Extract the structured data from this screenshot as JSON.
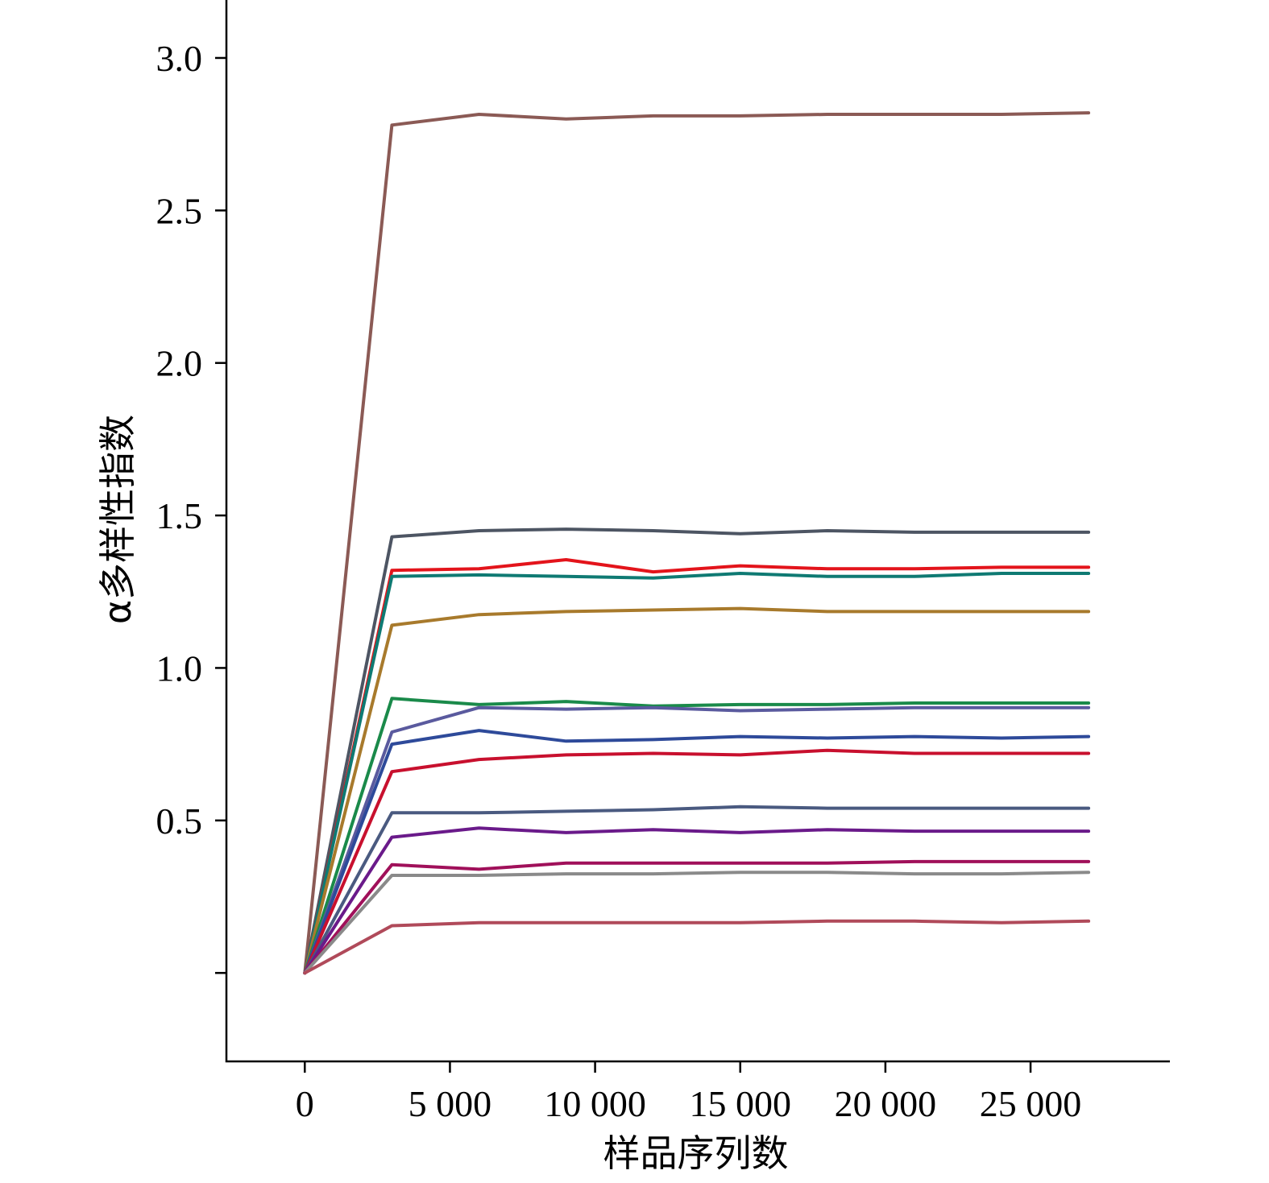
{
  "chart_data": {
    "type": "line",
    "xlabel": "样品序列数",
    "ylabel": "α多样性指数",
    "xlim": [
      -2700,
      29800
    ],
    "ylim": [
      -0.29,
      3.19
    ],
    "xticks": [
      0,
      5000,
      10000,
      15000,
      20000,
      25000
    ],
    "xtick_labels": [
      "0",
      "5 000",
      "10 000",
      "15 000",
      "20 000",
      "25 000"
    ],
    "yticks": [
      0.0,
      0.5,
      1.0,
      1.5,
      2.0,
      2.5,
      3.0
    ],
    "ytick_labels": [
      "",
      "0.5",
      "1.0",
      "1.5",
      "2.0",
      "2.5",
      "3.0"
    ],
    "grid": false,
    "x": [
      0,
      3000,
      6000,
      9000,
      12000,
      15000,
      18000,
      21000,
      24000,
      27000
    ],
    "series": [
      {
        "color": "#8b5a55",
        "values": [
          0,
          2.78,
          2.815,
          2.8,
          2.81,
          2.81,
          2.815,
          2.815,
          2.815,
          2.82
        ]
      },
      {
        "color": "#4d5563",
        "values": [
          0,
          1.43,
          1.45,
          1.455,
          1.45,
          1.44,
          1.45,
          1.445,
          1.445,
          1.445
        ]
      },
      {
        "color": "#e3141b",
        "values": [
          0,
          1.32,
          1.325,
          1.355,
          1.315,
          1.335,
          1.325,
          1.325,
          1.33,
          1.33
        ]
      },
      {
        "color": "#0f7a73",
        "values": [
          0,
          1.3,
          1.305,
          1.3,
          1.295,
          1.31,
          1.3,
          1.3,
          1.31,
          1.31
        ]
      },
      {
        "color": "#a87a2c",
        "values": [
          0,
          1.14,
          1.175,
          1.185,
          1.19,
          1.195,
          1.185,
          1.185,
          1.185,
          1.185
        ]
      },
      {
        "color": "#1a8a4a",
        "values": [
          0,
          0.9,
          0.88,
          0.89,
          0.875,
          0.88,
          0.88,
          0.885,
          0.885,
          0.885
        ]
      },
      {
        "color": "#5a5a9e",
        "values": [
          0,
          0.79,
          0.87,
          0.865,
          0.87,
          0.86,
          0.865,
          0.87,
          0.87,
          0.87
        ]
      },
      {
        "color": "#2e4a9a",
        "values": [
          0,
          0.75,
          0.795,
          0.76,
          0.765,
          0.775,
          0.77,
          0.775,
          0.77,
          0.775
        ]
      },
      {
        "color": "#c8102e",
        "values": [
          0,
          0.66,
          0.7,
          0.715,
          0.72,
          0.715,
          0.73,
          0.72,
          0.72,
          0.72
        ]
      },
      {
        "color": "#4a5a80",
        "values": [
          0,
          0.525,
          0.525,
          0.53,
          0.535,
          0.545,
          0.54,
          0.54,
          0.54,
          0.54
        ]
      },
      {
        "color": "#6a1a8a",
        "values": [
          0,
          0.445,
          0.475,
          0.46,
          0.47,
          0.46,
          0.47,
          0.465,
          0.465,
          0.465
        ]
      },
      {
        "color": "#a0105a",
        "values": [
          0,
          0.355,
          0.34,
          0.36,
          0.36,
          0.36,
          0.36,
          0.365,
          0.365,
          0.365
        ]
      },
      {
        "color": "#8a8a8a",
        "values": [
          0,
          0.32,
          0.32,
          0.325,
          0.325,
          0.33,
          0.33,
          0.325,
          0.325,
          0.33
        ]
      },
      {
        "color": "#b04a5a",
        "values": [
          0,
          0.155,
          0.165,
          0.165,
          0.165,
          0.165,
          0.17,
          0.17,
          0.165,
          0.17
        ]
      }
    ]
  }
}
